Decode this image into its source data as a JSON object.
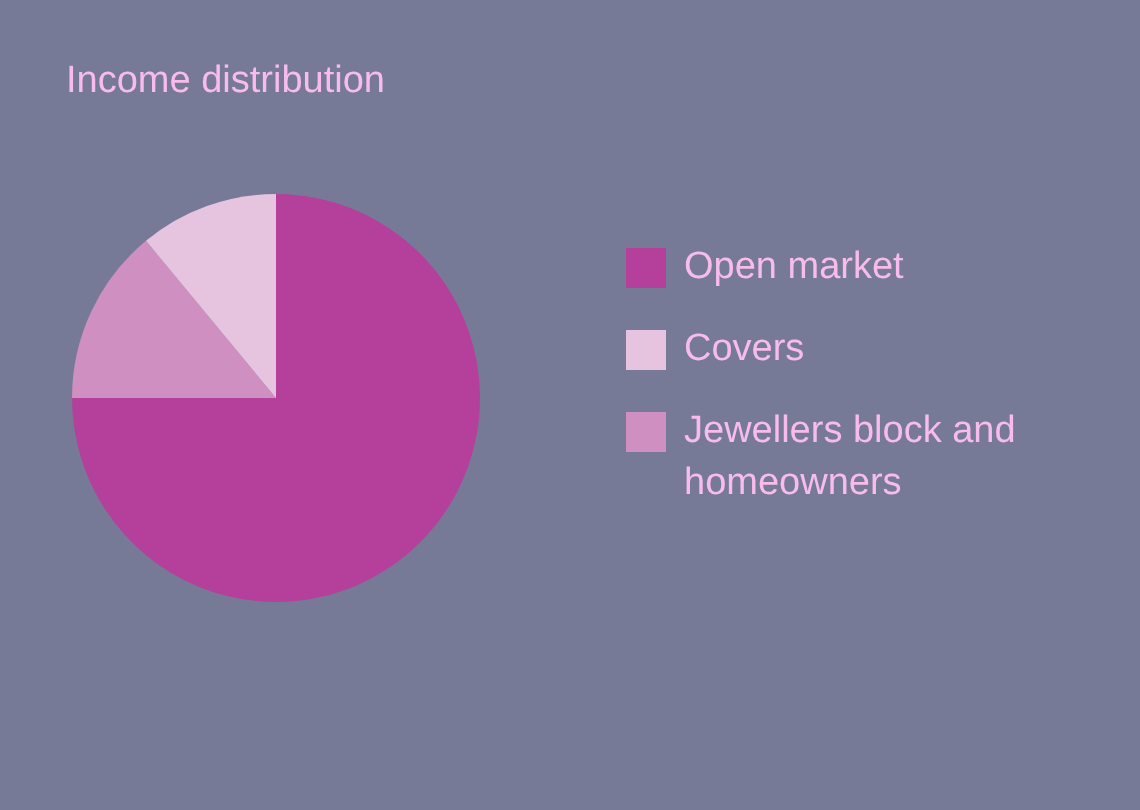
{
  "chart_data": {
    "type": "pie",
    "title": "Income distribution",
    "categories": [
      "Open market",
      "Covers",
      "Jewellers block and homeowners"
    ],
    "values": [
      75,
      11,
      14
    ],
    "colors": [
      "#b5409b",
      "#e6c3df",
      "#cf8fc0"
    ],
    "legend": "right"
  }
}
